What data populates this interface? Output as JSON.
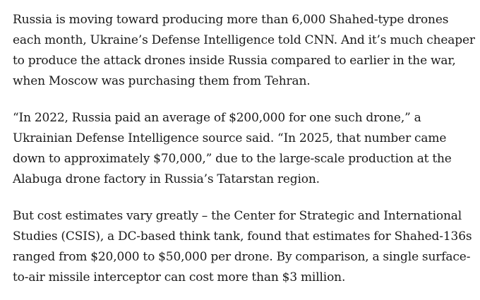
{
  "article": {
    "paragraphs": [
      {
        "lines": [
          "Russia is moving toward producing more than 6,000 Shahed-type drones",
          "each month, Ukraine’s Defense Intelligence told CNN. And it’s much cheaper",
          "to produce the attack drones inside Russia compared to earlier in the war,",
          "when Moscow was purchasing them from Tehran."
        ]
      },
      {
        "lines": [
          "“In 2022, Russia paid an average of $200,000 for one such drone,” a",
          "Ukrainian Defense Intelligence source said. “In 2025, that number came",
          "down to approximately $70,000,” due to the large-scale production at the",
          "Alabuga drone factory in Russia’s Tatarstan region."
        ]
      },
      {
        "lines": [
          "But cost estimates vary greatly – the Center for Strategic and International",
          "Studies (CSIS), a DC-based think tank, found that estimates for Shahed-136s",
          "ranged from $20,000 to $50,000 per drone. By comparison, a single surface-",
          "to-air missile interceptor can cost more than $3 million."
        ]
      }
    ]
  }
}
